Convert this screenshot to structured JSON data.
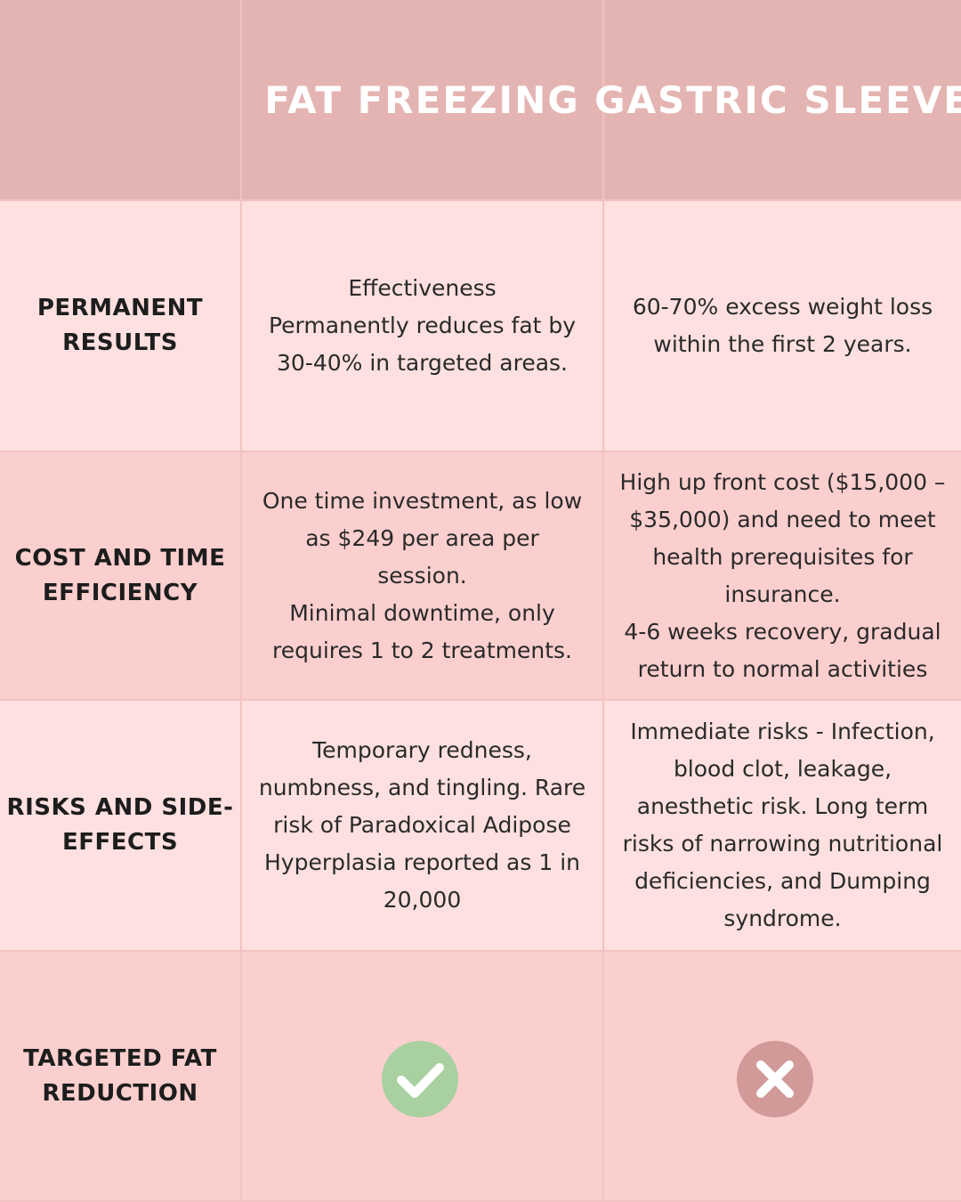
{
  "header": {
    "columns": [
      "FAT FREEZING",
      "GASTRIC SLEEVE"
    ]
  },
  "rows": [
    {
      "label": [
        "PERMANENT",
        "RESULTS"
      ],
      "cells": [
        [
          "Effectiveness",
          "Permanently reduces fat by",
          "30-40% in targeted areas."
        ],
        [
          "60-70% excess weight loss",
          "within the first 2 years."
        ]
      ]
    },
    {
      "label": [
        "COST AND TIME",
        "EFFICIENCY"
      ],
      "cells": [
        [
          "One time investment, as low",
          "as $249 per area per",
          "session.",
          "Minimal downtime, only",
          "requires 1 to 2 treatments."
        ],
        [
          "High up front cost ($15,000 –",
          "$35,000) and need to meet",
          "health prerequisites for",
          "insurance.",
          "4-6 weeks recovery, gradual",
          "return to normal activities"
        ]
      ]
    },
    {
      "label": [
        "RISKS AND SIDE-",
        "EFFECTS"
      ],
      "cells": [
        [
          "Temporary redness,",
          "numbness, and tingling. Rare",
          "risk of Paradoxical Adipose",
          "Hyperplasia reported as 1 in",
          "20,000"
        ],
        [
          "Immediate risks - Infection,",
          "blood clot, leakage,",
          "anesthetic risk. Long term",
          "risks of narrowing nutritional",
          "deficiencies, and Dumping",
          "syndrome."
        ]
      ]
    },
    {
      "label": [
        "TARGETED FAT",
        "REDUCTION"
      ]
    }
  ]
}
